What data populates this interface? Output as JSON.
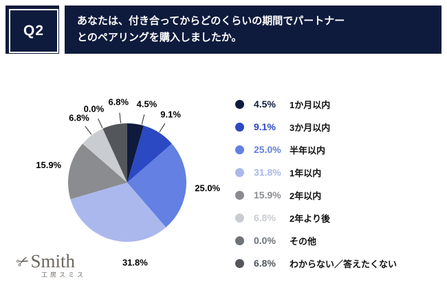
{
  "header": {
    "q_label": "Q2",
    "question_line1": "あなたは、付き合ってからどのくらいの期間でパートナー",
    "question_line2": "とのペアリングを購入しましたか。"
  },
  "chart_data": {
    "type": "pie",
    "title": "あなたは、付き合ってからどのくらいの期間でパートナーとのペアリングを購入しましたか。",
    "start_angle_deg": 0,
    "direction": "clockwise",
    "value_format": "percent",
    "slices": [
      {
        "label": "1か月以内",
        "value": 4.5,
        "color": "#0F1B3D"
      },
      {
        "label": "3か月以内",
        "value": 9.1,
        "color": "#2B49C3"
      },
      {
        "label": "半年以内",
        "value": 25.0,
        "color": "#6380E2"
      },
      {
        "label": "1年以内",
        "value": 31.8,
        "color": "#ABB8ED"
      },
      {
        "label": "2年以内",
        "value": 15.9,
        "color": "#8A8C90"
      },
      {
        "label": "2年より後",
        "value": 6.8,
        "color": "#C9CCD0"
      },
      {
        "label": "その他",
        "value": 0.0,
        "color": "#6E7378"
      },
      {
        "label": "わからない／答えたくない",
        "value": 6.8,
        "color": "#53575C"
      }
    ]
  },
  "legend": {
    "rows": [
      {
        "percent": "4.5%",
        "label": "1か月以内",
        "color": "#0F1B3D"
      },
      {
        "percent": "9.1%",
        "label": "3か月以内",
        "color": "#2B49C3"
      },
      {
        "percent": "25.0%",
        "label": "半年以内",
        "color": "#6380E2"
      },
      {
        "percent": "31.8%",
        "label": "1年以内",
        "color": "#ABB8ED"
      },
      {
        "percent": "15.9%",
        "label": "2年以内",
        "color": "#8A8C90"
      },
      {
        "percent": "6.8%",
        "label": "2年より後",
        "color": "#C9CCD0"
      },
      {
        "percent": "0.0%",
        "label": "その他",
        "color": "#6E7378"
      },
      {
        "percent": "6.8%",
        "label": "わからない／答えたくない",
        "color": "#53575C"
      }
    ]
  },
  "logo": {
    "name": "Smith",
    "subtitle": "工房スミス",
    "scissors_icon": "✂"
  }
}
